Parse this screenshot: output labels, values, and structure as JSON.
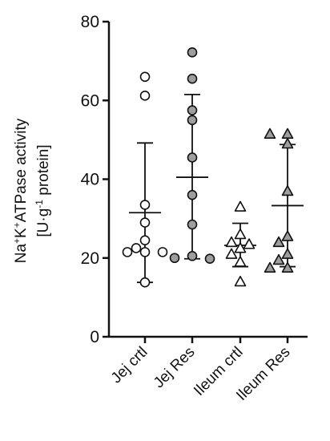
{
  "chart_data": {
    "type": "scatter",
    "subtype": "dot-plot-with-mean-and-sd",
    "categories": [
      "Jej crtl",
      "Jej Res",
      "Ileum crtl",
      "Ileum Res"
    ],
    "ylim": [
      0,
      80
    ],
    "yticks": [
      0,
      20,
      40,
      60,
      80
    ],
    "ylabel_line1": {
      "na": "Na",
      "plus1": "+",
      "k": "K",
      "plus2": "+",
      "rest": "ATPase activity"
    },
    "ylabel_line2": {
      "pre": "[U·g",
      "exp": "-1",
      "post": " protein]"
    },
    "groups": [
      {
        "name": "Jej crtl",
        "marker": "circle",
        "fill": "#ffffff",
        "mean": 31.5,
        "sd_low": 13.8,
        "sd_high": 49.2,
        "values": [
          66,
          61.2,
          33.5,
          29,
          24.5,
          22.5,
          21.5,
          21.5,
          21.5,
          13.8
        ]
      },
      {
        "name": "Jej Res",
        "marker": "circle",
        "fill": "#9e9e9e",
        "mean": 40.5,
        "sd_low": 19.8,
        "sd_high": 61.5,
        "values": [
          72.2,
          65.5,
          57.5,
          55,
          45.5,
          36,
          28.5,
          20.5,
          20,
          19.8
        ]
      },
      {
        "name": "Ileum crtl",
        "marker": "triangle",
        "fill": "#ffffff",
        "mean": 23.2,
        "sd_low": 17.8,
        "sd_high": 28.8,
        "values": [
          33,
          26,
          24,
          23.5,
          22.5,
          21,
          19,
          14
        ]
      },
      {
        "name": "Ileum Res",
        "marker": "triangle",
        "fill": "#9e9e9e",
        "mean": 33.3,
        "sd_low": 17.8,
        "sd_high": 48.8,
        "values": [
          51.5,
          51.5,
          49,
          37,
          25.5,
          24,
          21,
          19.5,
          17.5,
          17.5
        ]
      }
    ],
    "grid": false,
    "legend": "none",
    "colors": {
      "axis": "#111111",
      "marker_stroke": "#111111",
      "gray_fill": "#9e9e9e"
    }
  }
}
